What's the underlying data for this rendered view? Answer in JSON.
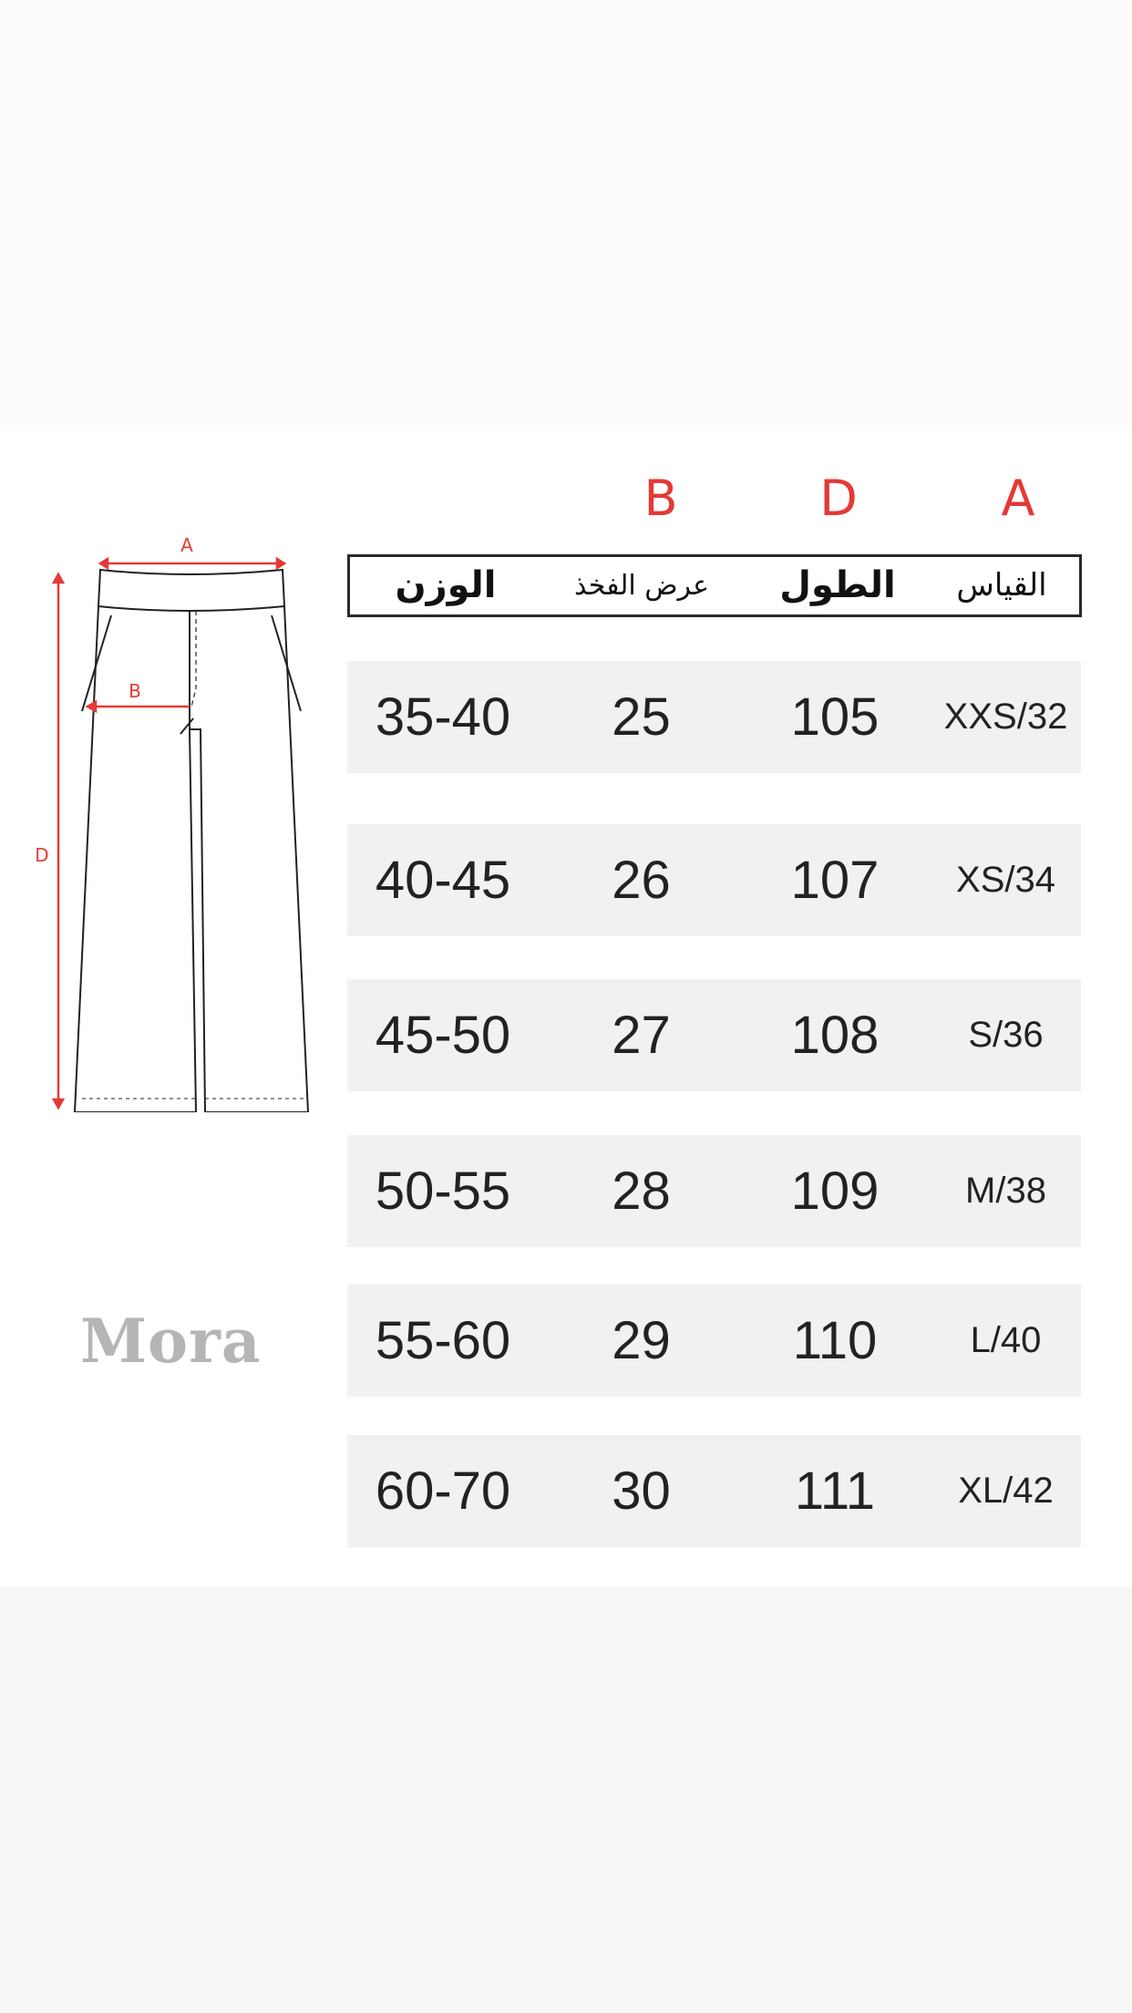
{
  "measure_letters": {
    "thigh": "B",
    "length": "D",
    "size": "A"
  },
  "header": {
    "weight": "الوزن",
    "thigh": "عرض الفخذ",
    "length": "الطول",
    "size": "القياس"
  },
  "rows": [
    {
      "weight": "35-40",
      "thigh": "25",
      "length": "105",
      "size": "XXS/32"
    },
    {
      "weight": "40-45",
      "thigh": "26",
      "length": "107",
      "size": "XS/34"
    },
    {
      "weight": "45-50",
      "thigh": "27",
      "length": "108",
      "size": "S/36"
    },
    {
      "weight": "50-55",
      "thigh": "28",
      "length": "109",
      "size": "M/38"
    },
    {
      "weight": "55-60",
      "thigh": "29",
      "length": "110",
      "size": "L/40"
    },
    {
      "weight": "60-70",
      "thigh": "30",
      "length": "111",
      "size": "XL/42"
    }
  ],
  "diagram": {
    "waist_label": "A",
    "thigh_label": "B",
    "length_label": "D"
  },
  "brand": {
    "logo_text": "Mora"
  },
  "colors": {
    "accent": "#e53935",
    "row_bg": "#f1f1f1"
  }
}
